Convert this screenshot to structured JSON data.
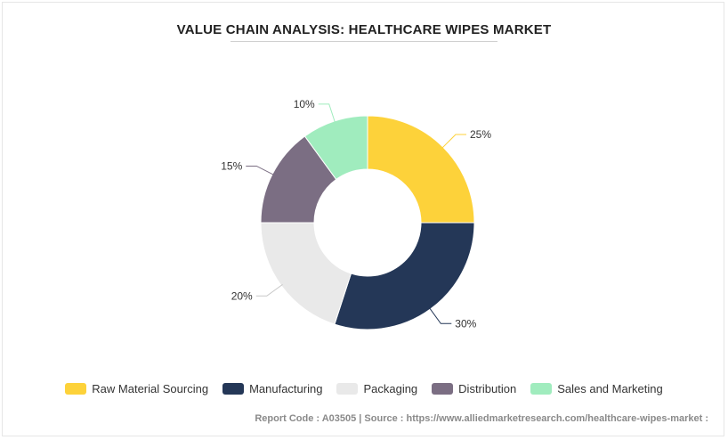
{
  "chart_data": {
    "type": "pie",
    "title": "VALUE CHAIN ANALYSIS: HEALTHCARE WIPES MARKET",
    "donut": true,
    "categories": [
      "Raw Material Sourcing",
      "Manufacturing",
      "Packaging",
      "Distribution",
      "Sales and Marketing"
    ],
    "values": [
      25,
      30,
      20,
      15,
      10
    ],
    "labels": [
      "25%",
      "30%",
      "20%",
      "15%",
      "10%"
    ],
    "colors": [
      "#FDD23A",
      "#243757",
      "#E9E9E9",
      "#7B6E83",
      "#A0ECBE"
    ],
    "legend_position": "bottom"
  },
  "footer": {
    "text": "Report Code : A03505  |  Source : https://www.alliedmarketresearch.com/healthcare-wipes-market :"
  }
}
